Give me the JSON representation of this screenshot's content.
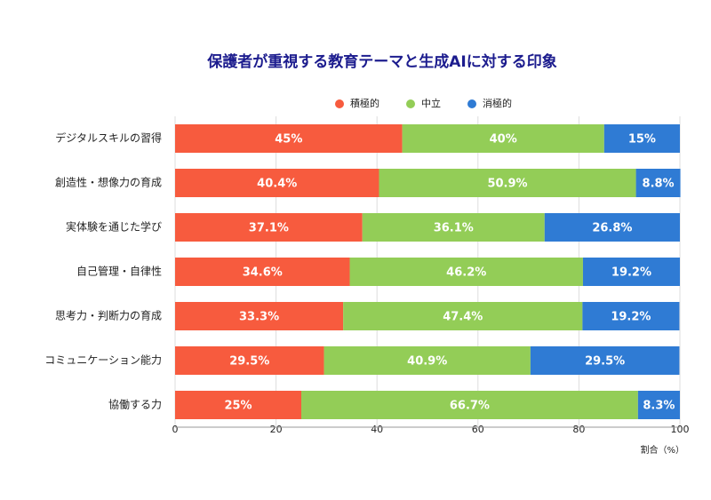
{
  "chart_data": {
    "type": "bar",
    "orientation": "horizontal",
    "stacked": true,
    "title": "保護者が重視する教育テーマと生成AIに対する印象",
    "x_label": "割合（%）",
    "categories": [
      "デジタルスキルの習得",
      "創造性・想像力の育成",
      "実体験を通じた学び",
      "自己管理・自律性",
      "思考力・判断力の育成",
      "コミュニケーション能力",
      "協働する力"
    ],
    "series": [
      {
        "name": "積極的",
        "color": "#f75b3e",
        "values": [
          45,
          40.4,
          37.1,
          34.6,
          33.3,
          29.5,
          25
        ],
        "value_labels": [
          "45%",
          "40.4%",
          "37.1%",
          "34.6%",
          "33.3%",
          "29.5%",
          "25%"
        ]
      },
      {
        "name": "中立",
        "color": "#93cd57",
        "values": [
          40,
          50.9,
          36.1,
          46.2,
          47.4,
          40.9,
          66.7
        ],
        "value_labels": [
          "40%",
          "50.9%",
          "36.1%",
          "46.2%",
          "47.4%",
          "40.9%",
          "66.7%"
        ]
      },
      {
        "name": "消極的",
        "color": "#2f7bd4",
        "values": [
          15,
          8.8,
          26.8,
          19.2,
          19.2,
          29.5,
          8.3
        ],
        "value_labels": [
          "15%",
          "8.8%",
          "26.8%",
          "19.2%",
          "19.2%",
          "29.5%",
          "8.3%"
        ]
      }
    ],
    "xlim": [
      0,
      100
    ],
    "xticks": [
      0,
      20,
      40,
      60,
      80,
      100
    ],
    "grid": true
  }
}
